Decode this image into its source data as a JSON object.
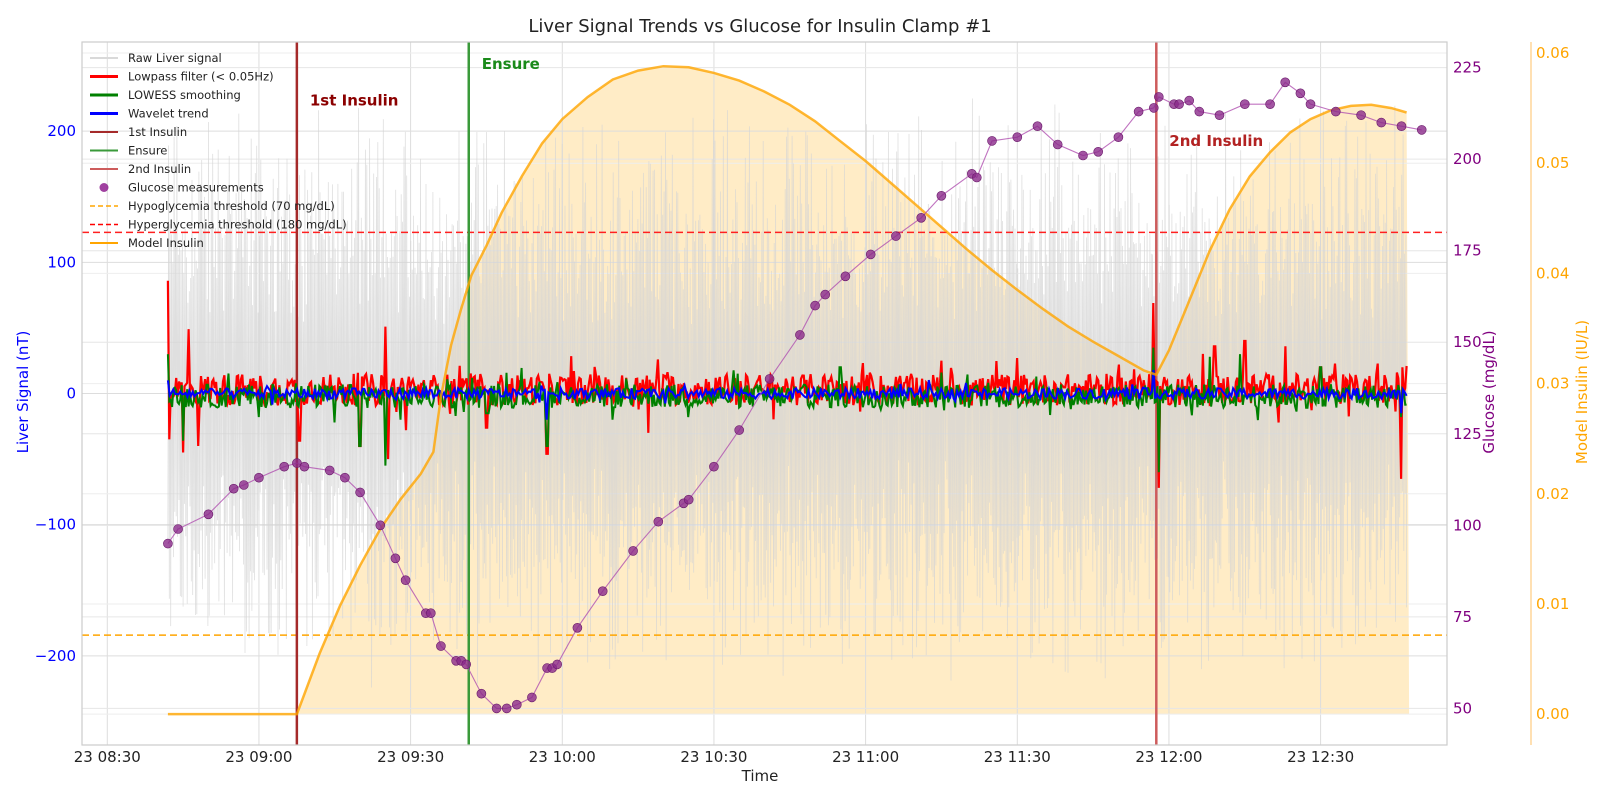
{
  "chart_data": {
    "type": "line",
    "title": "Liver Signal Trends vs Glucose for Insulin Clamp #1",
    "xlabel": "Time",
    "ylabel_left": "Liver Signal (nT)",
    "ylabel_right1": "Glucose (mg/dL)",
    "ylabel_right2": "Model Insulin (IU/L)",
    "x_ticks": [
      "23 08:30",
      "23 09:00",
      "23 09:30",
      "23 10:00",
      "23 10:30",
      "23 11:00",
      "23 11:30",
      "23 12:00",
      "23 12:30"
    ],
    "xlim_minutes": [
      -5,
      265
    ],
    "ylim_left": [
      -268,
      268
    ],
    "left_ticks": [
      -200,
      -100,
      0,
      100,
      200
    ],
    "left_tick_labels": [
      "−200",
      "−100",
      "0",
      "100",
      "200"
    ],
    "ylim_glucose": [
      40,
      232
    ],
    "glucose_ticks": [
      50,
      75,
      100,
      125,
      150,
      175,
      200,
      225
    ],
    "ylim_insulin": [
      -0.0028,
      0.061
    ],
    "insulin_ticks": [
      0.0,
      0.01,
      0.02,
      0.03,
      0.04,
      0.05,
      0.06
    ],
    "insulin_tick_labels": [
      "0.00",
      "0.01",
      "0.02",
      "0.03",
      "0.04",
      "0.05",
      "0.06"
    ],
    "grid": true,
    "legend_position": "top-left",
    "legend": [
      {
        "label": "Raw Liver signal",
        "color": "#d9d9d9",
        "style": "line"
      },
      {
        "label": "Lowpass filter (< 0.05Hz)",
        "color": "#ff0000",
        "style": "line-thick"
      },
      {
        "label": "LOWESS smoothing",
        "color": "#008000",
        "style": "line-thick"
      },
      {
        "label": "Wavelet trend",
        "color": "#0000ff",
        "style": "line-thick"
      },
      {
        "label": "1st Insulin",
        "color": "#a52a2a",
        "style": "line"
      },
      {
        "label": "Ensure",
        "color": "#3a9a3a",
        "style": "line"
      },
      {
        "label": "2nd Insulin",
        "color": "#cd5c5c",
        "style": "line"
      },
      {
        "label": "Glucose measurements",
        "color": "#800080",
        "style": "marker"
      },
      {
        "label": "Hypoglycemia threshold (70 mg/dL)",
        "color": "#ffa500",
        "style": "dashed"
      },
      {
        "label": "Hyperglycemia threshold (180 mg/dL)",
        "color": "#ff0000",
        "style": "dashed"
      },
      {
        "label": "Model Insulin",
        "color": "#ffa500",
        "style": "line"
      }
    ],
    "events": [
      {
        "name": "1st Insulin",
        "minute": 37.5,
        "color": "#a52a2a",
        "label_glucose": 216
      },
      {
        "name": "Ensure",
        "minute": 71.5,
        "color": "#3a9a3a",
        "label_glucose": 226
      },
      {
        "name": "2nd Insulin",
        "minute": 207.5,
        "color": "#cd5c5c",
        "label_glucose": 205
      }
    ],
    "thresholds": {
      "hypo": 70,
      "hyper": 180
    },
    "signal_span_minutes": [
      12,
      257
    ],
    "glucose_points": [
      [
        12,
        95
      ],
      [
        14,
        99
      ],
      [
        20,
        103
      ],
      [
        25,
        110
      ],
      [
        27,
        111
      ],
      [
        30,
        113
      ],
      [
        35,
        116
      ],
      [
        37.5,
        117
      ],
      [
        39,
        116
      ],
      [
        44,
        115
      ],
      [
        47,
        113
      ],
      [
        50,
        109
      ],
      [
        54,
        100
      ],
      [
        57,
        91
      ],
      [
        59,
        85
      ],
      [
        63,
        76
      ],
      [
        64,
        76
      ],
      [
        66,
        67
      ],
      [
        69,
        63
      ],
      [
        70,
        63
      ],
      [
        71,
        62
      ],
      [
        74,
        54
      ],
      [
        77,
        50
      ],
      [
        79,
        50
      ],
      [
        81,
        51
      ],
      [
        84,
        53
      ],
      [
        87,
        61
      ],
      [
        88,
        61
      ],
      [
        89,
        62
      ],
      [
        93,
        72
      ],
      [
        98,
        82
      ],
      [
        104,
        93
      ],
      [
        109,
        101
      ],
      [
        114,
        106
      ],
      [
        115,
        107
      ],
      [
        120,
        116
      ],
      [
        125,
        126
      ],
      [
        131,
        140
      ],
      [
        137,
        152
      ],
      [
        140,
        160
      ],
      [
        142,
        163
      ],
      [
        146,
        168
      ],
      [
        151,
        174
      ],
      [
        156,
        179
      ],
      [
        161,
        184
      ],
      [
        165,
        190
      ],
      [
        171,
        196
      ],
      [
        172,
        195
      ],
      [
        175,
        205
      ],
      [
        180,
        206
      ],
      [
        184,
        209
      ],
      [
        188,
        204
      ],
      [
        193,
        201
      ],
      [
        196,
        202
      ],
      [
        200,
        206
      ],
      [
        204,
        213
      ],
      [
        207,
        214
      ],
      [
        208,
        217
      ],
      [
        211,
        215
      ],
      [
        212,
        215
      ],
      [
        214,
        216
      ],
      [
        216,
        213
      ],
      [
        220,
        212
      ],
      [
        225,
        215
      ],
      [
        230,
        215
      ],
      [
        233,
        221
      ],
      [
        236,
        218
      ],
      [
        238,
        215
      ],
      [
        243,
        213
      ],
      [
        248,
        212
      ],
      [
        252,
        210
      ],
      [
        256,
        209
      ],
      [
        260,
        208
      ]
    ],
    "insulin_model": [
      [
        12,
        0.0
      ],
      [
        37.5,
        0.0
      ],
      [
        42,
        0.0055
      ],
      [
        46,
        0.0098
      ],
      [
        50,
        0.0135
      ],
      [
        54,
        0.0168
      ],
      [
        58,
        0.0195
      ],
      [
        62,
        0.0218
      ],
      [
        64.5,
        0.0238
      ],
      [
        66,
        0.0288
      ],
      [
        68,
        0.0335
      ],
      [
        70,
        0.0368
      ],
      [
        72,
        0.0398
      ],
      [
        75,
        0.0425
      ],
      [
        78,
        0.0455
      ],
      [
        82,
        0.0488
      ],
      [
        86,
        0.0518
      ],
      [
        90,
        0.054
      ],
      [
        95,
        0.056
      ],
      [
        100,
        0.0576
      ],
      [
        105,
        0.0584
      ],
      [
        110,
        0.0588
      ],
      [
        115,
        0.0587
      ],
      [
        120,
        0.0582
      ],
      [
        125,
        0.0575
      ],
      [
        130,
        0.0565
      ],
      [
        135,
        0.0553
      ],
      [
        140,
        0.0538
      ],
      [
        145,
        0.052
      ],
      [
        150,
        0.0502
      ],
      [
        155,
        0.0482
      ],
      [
        160,
        0.0462
      ],
      [
        165,
        0.0442
      ],
      [
        170,
        0.0422
      ],
      [
        175,
        0.0403
      ],
      [
        180,
        0.0385
      ],
      [
        185,
        0.0368
      ],
      [
        190,
        0.0352
      ],
      [
        195,
        0.0338
      ],
      [
        200,
        0.0325
      ],
      [
        205,
        0.0312
      ],
      [
        207.5,
        0.0308
      ],
      [
        210,
        0.033
      ],
      [
        214,
        0.0375
      ],
      [
        218,
        0.042
      ],
      [
        222,
        0.0458
      ],
      [
        226,
        0.0488
      ],
      [
        230,
        0.051
      ],
      [
        234,
        0.0528
      ],
      [
        238,
        0.054
      ],
      [
        242,
        0.0548
      ],
      [
        246,
        0.0552
      ],
      [
        250,
        0.0553
      ],
      [
        254,
        0.055
      ],
      [
        257,
        0.0546
      ],
      [
        257.5,
        0.0
      ]
    ],
    "lowpass_peaks": [
      [
        12,
        86
      ],
      [
        12.2,
        -35
      ],
      [
        15,
        -45
      ],
      [
        16,
        49
      ],
      [
        18,
        -40
      ],
      [
        38,
        -36
      ],
      [
        50,
        -40
      ],
      [
        55,
        51
      ],
      [
        55.5,
        -50
      ],
      [
        59,
        -28
      ],
      [
        75,
        -26
      ],
      [
        87,
        -46
      ],
      [
        107,
        -30
      ],
      [
        109,
        26
      ],
      [
        165,
        25
      ],
      [
        180,
        27
      ],
      [
        200,
        22
      ],
      [
        207,
        69
      ],
      [
        208,
        -72
      ],
      [
        219,
        36
      ],
      [
        225,
        40
      ],
      [
        233,
        36
      ],
      [
        240,
        20
      ],
      [
        255,
        16
      ],
      [
        256,
        -65
      ],
      [
        257,
        21
      ]
    ],
    "lowess_peaks": [
      [
        12,
        30
      ],
      [
        15,
        -36
      ],
      [
        22,
        -10
      ],
      [
        30,
        -18
      ],
      [
        45,
        -22
      ],
      [
        50,
        -40
      ],
      [
        55,
        -55
      ],
      [
        58,
        -20
      ],
      [
        75,
        -15
      ],
      [
        87,
        -40
      ],
      [
        100,
        -20
      ],
      [
        115,
        -18
      ],
      [
        145,
        20
      ],
      [
        165,
        16
      ],
      [
        207,
        35
      ],
      [
        208,
        -60
      ],
      [
        218,
        28
      ],
      [
        224,
        30
      ],
      [
        240,
        20
      ],
      [
        256,
        -18
      ]
    ]
  }
}
